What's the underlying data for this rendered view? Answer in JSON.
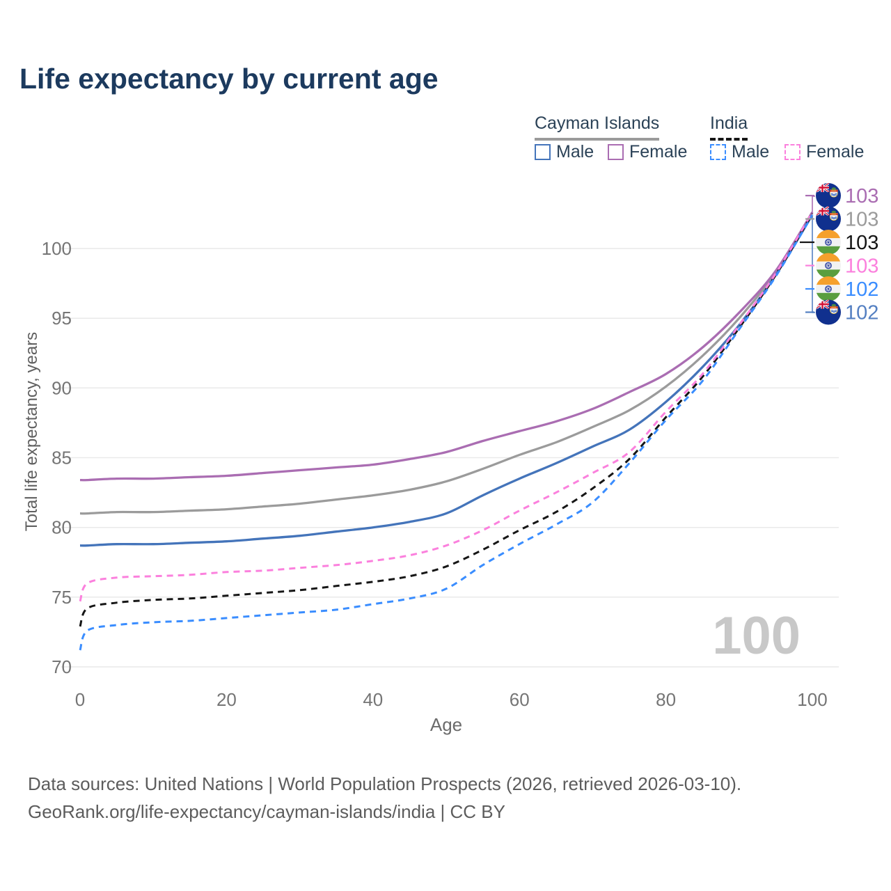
{
  "title": "Life expectancy by current age",
  "legend": {
    "groups": [
      {
        "label": "Cayman Islands",
        "line_style": "solid",
        "line_color": "#9b9b9b"
      },
      {
        "label": "India",
        "line_style": "dashed",
        "line_color": "#161616"
      }
    ],
    "items": [
      {
        "label": "Male",
        "color": "#4474ba",
        "style": "solid"
      },
      {
        "label": "Female",
        "color": "#aa6db2",
        "style": "solid"
      },
      {
        "label": "Male",
        "color": "#3a8dff",
        "style": "dashed"
      },
      {
        "label": "Female",
        "color": "#fb80dd",
        "style": "dashed"
      }
    ]
  },
  "watermark_age": "100",
  "chart_data": {
    "type": "line",
    "title": "Life expectancy by current age",
    "xlabel": "Age",
    "ylabel": "Total life expectancy, years",
    "xlim": [
      0,
      100
    ],
    "ylim": [
      70,
      100
    ],
    "x_ticks": [
      0,
      20,
      40,
      60,
      80,
      100
    ],
    "y_ticks": [
      70,
      75,
      80,
      85,
      90,
      95,
      100
    ],
    "grid": true,
    "legend_position": "top-right",
    "ages": [
      0,
      1,
      5,
      10,
      15,
      20,
      25,
      30,
      35,
      40,
      45,
      50,
      55,
      60,
      65,
      70,
      75,
      80,
      85,
      90,
      95,
      100
    ],
    "series": [
      {
        "name": "Cayman Islands",
        "id": "cayman-all",
        "color": "#9b9b9b",
        "style": "solid",
        "values": [
          81.0,
          81.0,
          81.1,
          81.1,
          81.2,
          81.3,
          81.5,
          81.7,
          82.0,
          82.3,
          82.7,
          83.3,
          84.2,
          85.2,
          86.1,
          87.2,
          88.4,
          90.1,
          92.3,
          95.0,
          98.3,
          102.6
        ]
      },
      {
        "name": "Cayman Islands Female",
        "id": "cayman-female",
        "color": "#aa6db2",
        "style": "solid",
        "values": [
          83.4,
          83.4,
          83.5,
          83.5,
          83.6,
          83.7,
          83.9,
          84.1,
          84.3,
          84.5,
          84.9,
          85.4,
          86.2,
          86.9,
          87.6,
          88.5,
          89.7,
          91.0,
          92.9,
          95.4,
          98.4,
          102.6
        ]
      },
      {
        "name": "Cayman Islands Male",
        "id": "cayman-male",
        "color": "#4474ba",
        "style": "solid",
        "values": [
          78.7,
          78.7,
          78.8,
          78.8,
          78.9,
          79.0,
          79.2,
          79.4,
          79.7,
          80.0,
          80.4,
          81.0,
          82.3,
          83.5,
          84.6,
          85.8,
          87.0,
          89.0,
          91.5,
          94.5,
          98.1,
          102.4
        ]
      },
      {
        "name": "India",
        "id": "india-all",
        "color": "#161616",
        "style": "dashed",
        "values": [
          72.9,
          74.2,
          74.6,
          74.8,
          74.9,
          75.1,
          75.3,
          75.5,
          75.8,
          76.1,
          76.5,
          77.2,
          78.4,
          79.8,
          81.1,
          82.8,
          84.9,
          87.9,
          90.8,
          94.3,
          98.1,
          102.5
        ]
      },
      {
        "name": "India Female",
        "id": "india-female",
        "color": "#fb80dd",
        "style": "dashed",
        "values": [
          74.7,
          76.0,
          76.4,
          76.5,
          76.6,
          76.8,
          76.9,
          77.1,
          77.3,
          77.6,
          78.0,
          78.7,
          79.8,
          81.2,
          82.5,
          83.9,
          85.4,
          88.3,
          91.0,
          94.5,
          98.2,
          102.6
        ]
      },
      {
        "name": "India Male",
        "id": "india-male",
        "color": "#3a8dff",
        "style": "dashed",
        "values": [
          71.2,
          72.6,
          73.0,
          73.2,
          73.3,
          73.5,
          73.7,
          73.9,
          74.1,
          74.5,
          74.9,
          75.6,
          77.3,
          78.8,
          80.2,
          81.8,
          84.6,
          87.7,
          90.5,
          94.2,
          98.0,
          102.4
        ]
      }
    ]
  },
  "end_labels": [
    {
      "value": "103",
      "flag": "cayman",
      "color": "#aa6db2",
      "series": "Cayman Islands Female"
    },
    {
      "value": "103",
      "flag": "cayman",
      "color": "#9b9b9b",
      "series": "Cayman Islands"
    },
    {
      "value": "103",
      "flag": "india",
      "color": "#161616",
      "series": "India"
    },
    {
      "value": "103",
      "flag": "india",
      "color": "#fb80dd",
      "series": "India Female"
    },
    {
      "value": "102",
      "flag": "india",
      "color": "#3a8dff",
      "series": "India Male"
    },
    {
      "value": "102",
      "flag": "cayman",
      "color": "#5580c2",
      "series": "Cayman Islands Male"
    }
  ],
  "footer": {
    "line1": "Data sources: United Nations | World Population Prospects (2026, retrieved 2026-03-10).",
    "line2": "GeoRank.org/life-expectancy/cayman-islands/india | CC BY"
  }
}
